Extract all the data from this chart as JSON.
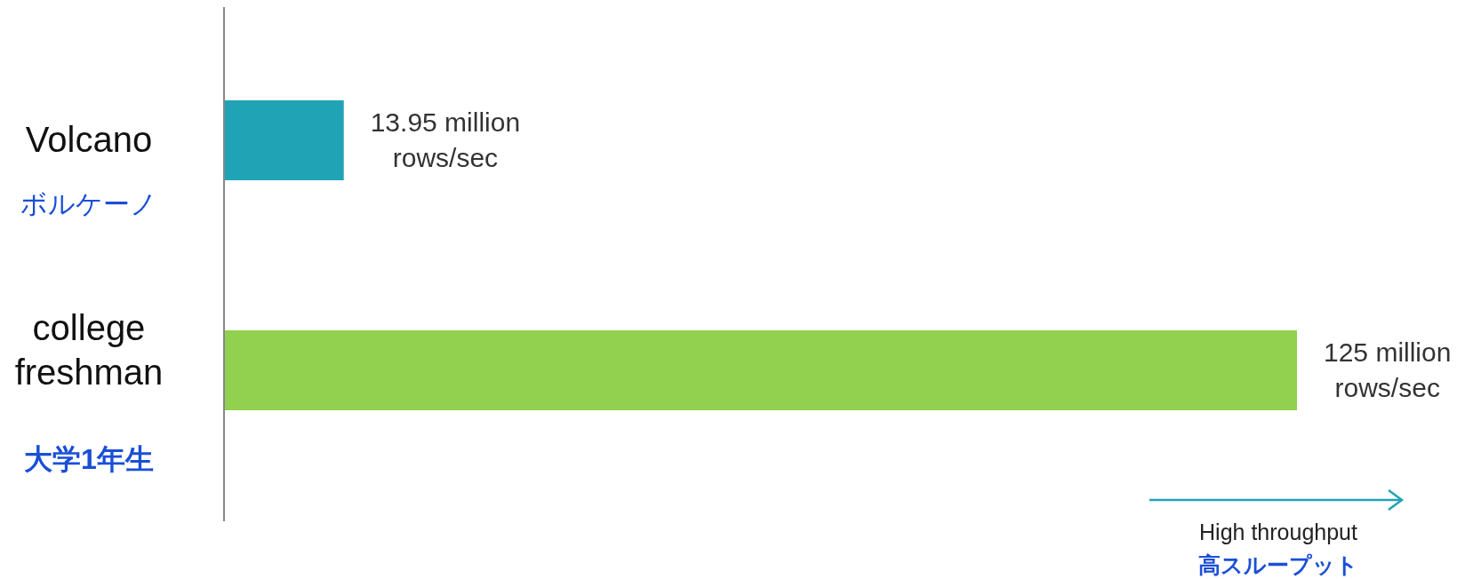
{
  "chart_data": {
    "type": "bar",
    "orientation": "horizontal",
    "categories": [
      "Volcano",
      "college freshman"
    ],
    "values": [
      13.95,
      125
    ],
    "colors": [
      "#20a3b5",
      "#92d050"
    ],
    "value_labels": [
      "13.95 million rows/sec",
      "125 million rows/sec"
    ],
    "annotations": [
      "ボルケーノ",
      "大学1年生",
      "High throughput",
      "高スループット"
    ]
  }
}
